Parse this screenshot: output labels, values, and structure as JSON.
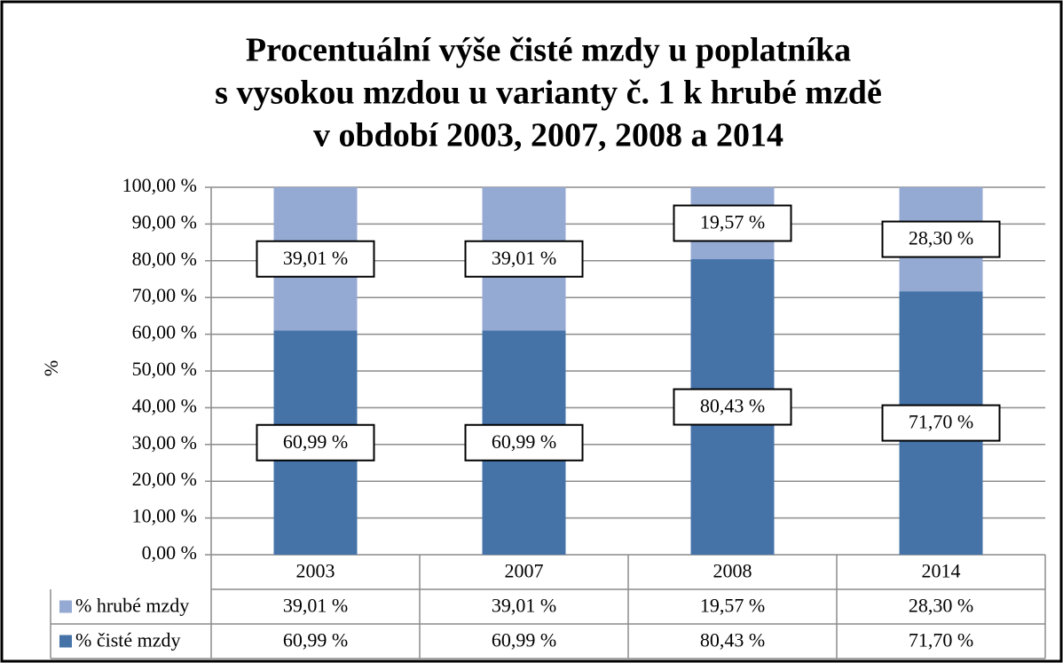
{
  "chart_data": {
    "type": "stacked_bar",
    "title": [
      "Procentuální výše čisté mzdy u poplatníka",
      "s vysokou mzdou u varianty č. 1 k hrubé mzdě",
      "v období 2003, 2007, 2008 a 2014"
    ],
    "y_label": "%",
    "categories": [
      "2003",
      "2007",
      "2008",
      "2014"
    ],
    "series": [
      {
        "name": "% čisté mzdy",
        "color": "#4573a8",
        "values": [
          60.99,
          60.99,
          80.43,
          71.7
        ],
        "value_labels": [
          "60,99 %",
          "60,99 %",
          "80,43 %",
          "71,70 %"
        ]
      },
      {
        "name": "% hrubé mzdy",
        "color": "#95aad3",
        "values": [
          39.01,
          39.01,
          19.57,
          28.3
        ],
        "value_labels": [
          "39,01 %",
          "39,01 %",
          "19,57 %",
          "28,30 %"
        ]
      }
    ],
    "ylim": [
      0,
      100
    ],
    "yticks": [
      {
        "value": 0,
        "label": "0,00 %"
      },
      {
        "value": 10,
        "label": "10,00 %"
      },
      {
        "value": 20,
        "label": "20,00 %"
      },
      {
        "value": 30,
        "label": "30,00 %"
      },
      {
        "value": 40,
        "label": "40,00 %"
      },
      {
        "value": 50,
        "label": "50,00 %"
      },
      {
        "value": 60,
        "label": "60,00 %"
      },
      {
        "value": 70,
        "label": "70,00 %"
      },
      {
        "value": 80,
        "label": "80,00 %"
      },
      {
        "value": 90,
        "label": "90,00 %"
      },
      {
        "value": 100,
        "label": "100,00 %"
      }
    ],
    "grid": true
  }
}
